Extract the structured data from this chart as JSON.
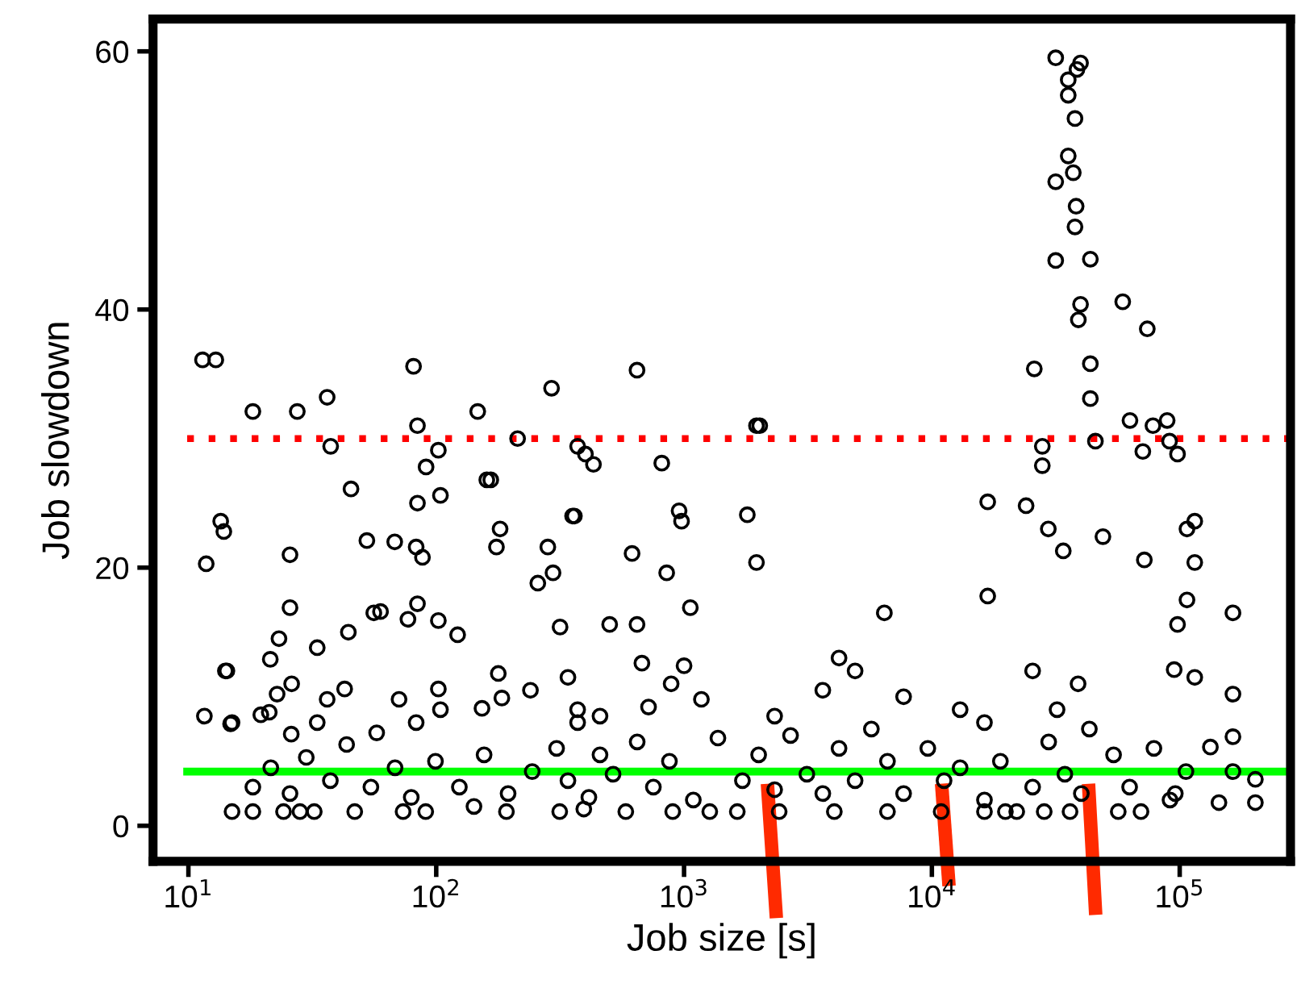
{
  "chart_data": {
    "type": "scatter",
    "xlabel": "Job size [s]",
    "ylabel": "Job slowdown",
    "log": "x",
    "xlim": [
      7.2,
      280000
    ],
    "xticks": [
      {
        "value": 10,
        "label": "10$^{1}$"
      },
      {
        "value": 100,
        "label": "10$^{2}$"
      },
      {
        "value": 1000,
        "label": "10$^{3}$"
      },
      {
        "value": 10000,
        "label": "10$^{4}$"
      },
      {
        "value": 100000,
        "label": "10$^{5}$"
      }
    ],
    "ylim": [
      -2.75,
      62.5
    ],
    "yticks": [
      0,
      20,
      40,
      60
    ],
    "grid": false,
    "legend": false,
    "marker": "circle",
    "ref_lines": [
      {
        "axis": "y",
        "value": 30,
        "color": "#ff0000",
        "line_style": "dotted"
      },
      {
        "axis": "y",
        "value": 4.2,
        "color": "#00ff00",
        "line_style": "solid"
      }
    ],
    "series": [
      {
        "color": "#000000",
        "x": [
          11.4,
          12.9,
          11.8,
          13.5,
          13.9,
          11.6,
          14.3,
          15.0,
          18.2,
          27.5,
          36.3,
          37.5,
          19.6,
          25.7,
          22.8,
          26.0,
          45.3,
          52.5,
          56.0,
          81,
          84,
          91,
          102,
          147,
          166,
          181,
          213,
          292,
          372,
          400,
          431,
          355,
          296,
          646,
          813,
          977,
          1960,
          1800,
          1960,
          16800,
          24000,
          16800,
          29500,
          33900,
          49000,
          72000,
          115000,
          107000,
          164000,
          164000,
          115000,
          107000,
          98000,
          95000,
          115000,
          164000,
          164000,
          202000,
          202000,
          144000,
          133000,
          96000,
          31600,
          39800,
          38500,
          35500,
          35500,
          37800,
          35500,
          37200,
          31600,
          38200,
          37800,
          31600,
          43600,
          39800,
          58900,
          39000,
          74000,
          25900,
          43600,
          43600,
          63000,
          89000,
          78000,
          2020,
          27900,
          45700,
          91000,
          98000,
          27900,
          71000,
          25.7,
          84,
          104,
          160,
          175,
          83,
          68,
          88,
          361,
          617,
          955,
          851,
          1060,
          282,
          257,
          14.1,
          21.4,
          23.2,
          14.8,
          21.2,
          26.1,
          33.1,
          44.2,
          59.6,
          84,
          76.9,
          102,
          122,
          42.7,
          36.3,
          33.1,
          57.5,
          70.8,
          83,
          104,
          102,
          178,
          153,
          184,
          240,
          316,
          501,
          646,
          887,
          1175,
          719,
          676,
          1000,
          15.0,
          18.2,
          24.2,
          28.2,
          32.2,
          46.9,
          73.5,
          90.7,
          142,
          192,
          315,
          394,
          582,
          900,
          1270,
          1640,
          2420,
          4040,
          6620,
          10900,
          16300,
          19800,
          22000,
          28400,
          36100,
          56500,
          69800,
          18.2,
          21.5,
          25.7,
          29.9,
          37.4,
          43.5,
          54.5,
          68.2,
          79.3,
          99.3,
          124,
          156,
          195,
          244,
          306,
          340,
          372,
          413,
          458,
          517,
          647,
          752,
          873,
          1090,
          1370,
          1720,
          2000,
          2320,
          2690,
          3130,
          3630,
          4220,
          4900,
          5700,
          6620,
          7690,
          9630,
          11200,
          13000,
          16300,
          18900,
          25500,
          29600,
          34400,
          40100,
          54100,
          62800,
          78700,
          91400,
          106000,
          2320,
          4220,
          6430,
          3630,
          4900,
          7690,
          13000,
          16300,
          25500,
          32000,
          38900,
          340,
          372,
          458,
          43200
        ],
        "values": [
          36.1,
          36.1,
          20.3,
          23.6,
          22.8,
          8.5,
          12,
          8,
          32.1,
          32.1,
          33.2,
          29.4,
          8.6,
          16.9,
          10.2,
          7.1,
          26.1,
          22.1,
          16.5,
          35.6,
          31,
          27.8,
          29.1,
          32.1,
          26.8,
          23,
          30,
          33.9,
          29.4,
          28.8,
          28,
          24,
          19.6,
          35.3,
          28.1,
          23.6,
          31,
          24.1,
          20.4,
          25.1,
          24.8,
          17.8,
          23,
          21.3,
          22.4,
          20.6,
          23.6,
          23,
          16.5,
          10.2,
          20.4,
          17.5,
          15.6,
          12.1,
          11.5,
          6.9,
          4.2,
          3.6,
          1.8,
          1.8,
          6.1,
          2.5,
          59.5,
          59.1,
          58.6,
          57.8,
          56.6,
          54.8,
          51.9,
          50.6,
          49.9,
          48,
          46.4,
          43.8,
          43.9,
          40.4,
          40.6,
          39.2,
          38.5,
          35.4,
          35.8,
          33.1,
          31.4,
          31.4,
          31,
          31,
          29.4,
          29.8,
          29.8,
          28.8,
          27.9,
          29,
          21,
          25,
          25.6,
          26.8,
          21.6,
          21.6,
          22,
          20.8,
          24,
          21.1,
          24.4,
          19.6,
          16.9,
          21.6,
          18.8,
          12,
          12.9,
          14.5,
          7.9,
          8.8,
          11,
          13.8,
          15,
          16.6,
          17.2,
          16,
          15.9,
          14.8,
          10.6,
          9.8,
          8,
          7.2,
          9.8,
          8,
          9,
          10.6,
          11.8,
          9.1,
          9.9,
          10.5,
          15.4,
          15.6,
          15.6,
          11,
          9.8,
          9.2,
          12.6,
          12.4,
          1.1,
          1.1,
          1.1,
          1.1,
          1.1,
          1.1,
          1.1,
          1.1,
          1.5,
          1.1,
          1.1,
          1.3,
          1.1,
          1.1,
          1.1,
          1.1,
          1.1,
          1.1,
          1.1,
          1.1,
          1.1,
          1.1,
          1.1,
          1.1,
          1.1,
          1.1,
          1.1,
          3,
          4.5,
          2.5,
          5.3,
          3.5,
          6.3,
          3,
          4.5,
          2.2,
          5,
          3,
          5.5,
          2.5,
          4.2,
          6,
          3.5,
          8,
          2.2,
          5.5,
          4,
          6.5,
          3,
          5,
          2,
          6.8,
          3.5,
          5.5,
          2.8,
          7,
          4,
          2.5,
          6,
          3.5,
          7.5,
          5,
          2.5,
          6,
          3.5,
          4.5,
          2,
          5,
          3,
          6.5,
          4,
          2.5,
          5.5,
          3,
          6,
          2,
          4.2,
          8.5,
          13,
          16.5,
          10.5,
          12,
          10,
          9,
          8,
          12,
          9,
          11,
          11.5,
          9,
          8.5,
          7.5
        ]
      }
    ]
  }
}
